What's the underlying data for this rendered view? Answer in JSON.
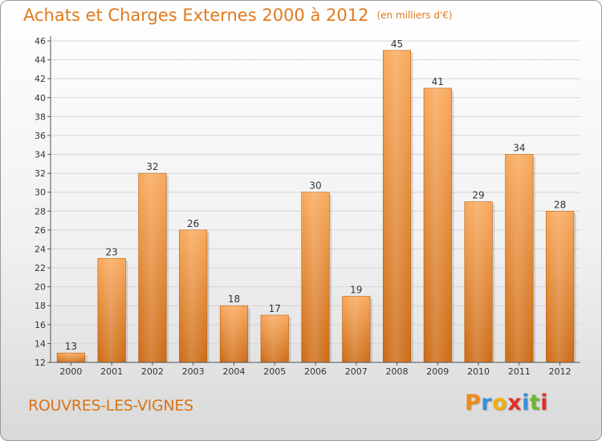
{
  "header": {
    "title": "Achats et Charges Externes 2000 à 2012",
    "unit": "(en milliers d'€)"
  },
  "footer": {
    "commune": "ROUVRES-LES-VIGNES",
    "brand": "Proxiti"
  },
  "colors": {
    "accent": "#e07a1c",
    "bar_top": "#f9a85a",
    "bar_bottom": "#cc6a14",
    "grid": "#d6d6d6"
  },
  "chart_data": {
    "type": "bar",
    "categories": [
      "2000",
      "2001",
      "2002",
      "2003",
      "2004",
      "2005",
      "2006",
      "2007",
      "2008",
      "2009",
      "2010",
      "2011",
      "2012"
    ],
    "values": [
      13,
      23,
      32,
      26,
      18,
      17,
      30,
      19,
      45,
      41,
      29,
      34,
      28
    ],
    "ylim": [
      12,
      46
    ],
    "yticks": [
      12,
      14,
      16,
      18,
      20,
      22,
      24,
      26,
      28,
      30,
      32,
      34,
      36,
      38,
      40,
      42,
      44,
      46
    ],
    "grid": true,
    "legend": "none"
  }
}
